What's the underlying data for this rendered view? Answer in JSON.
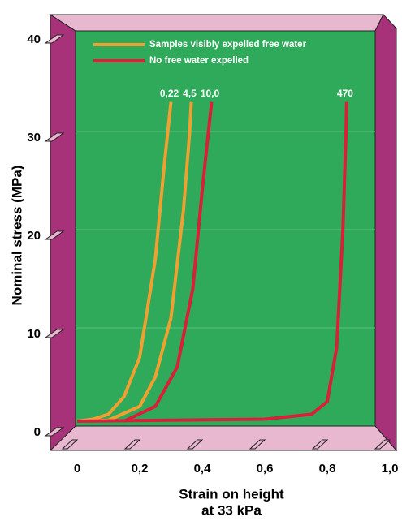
{
  "chart_data": {
    "type": "line",
    "ylabel": "Nominal stress (MPa)",
    "xlabel": [
      "Strain on height",
      "at 33 kPa"
    ],
    "xlim": [
      0,
      1.0
    ],
    "ylim": [
      0,
      40
    ],
    "xticks": [
      0,
      {
        "value": 0.2,
        "label": "0,2"
      },
      {
        "value": 0.4,
        "label": "0,4"
      },
      {
        "value": 0.6,
        "label": "0,6"
      },
      {
        "value": 0.8,
        "label": "0,8"
      },
      {
        "value": 1.0,
        "label": "1,0"
      }
    ],
    "yticks": [
      0,
      10,
      20,
      30,
      40
    ],
    "grid": true,
    "legend": [
      {
        "name": "Samples visibly expelled free water",
        "color": "#f0a030"
      },
      {
        "name": "No free water expelled",
        "color": "#d8203a"
      }
    ],
    "series": [
      {
        "label": "0,22",
        "color": "#f0a030",
        "x": [
          0,
          0.05,
          0.1,
          0.15,
          0.2,
          0.25,
          0.28,
          0.3
        ],
        "values": [
          0.5,
          0.7,
          1.2,
          3,
          7,
          17,
          27,
          33
        ]
      },
      {
        "label": "4,5",
        "color": "#f0a030",
        "x": [
          0,
          0.1,
          0.2,
          0.25,
          0.3,
          0.34,
          0.36,
          0.365
        ],
        "values": [
          0.5,
          0.6,
          2,
          5,
          11,
          22,
          30,
          33
        ]
      },
      {
        "label": "10,0",
        "color": "#d8203a",
        "x": [
          0.15,
          0.25,
          0.32,
          0.37,
          0.4,
          0.42,
          0.43
        ],
        "values": [
          0.5,
          2,
          6,
          14,
          24,
          30,
          33
        ]
      },
      {
        "label": "470",
        "color": "#d8203a",
        "x": [
          0,
          0.6,
          0.75,
          0.8,
          0.83,
          0.85,
          0.86,
          0.862
        ],
        "values": [
          0.5,
          0.7,
          1.2,
          2.5,
          8,
          20,
          30,
          33
        ]
      }
    ]
  }
}
